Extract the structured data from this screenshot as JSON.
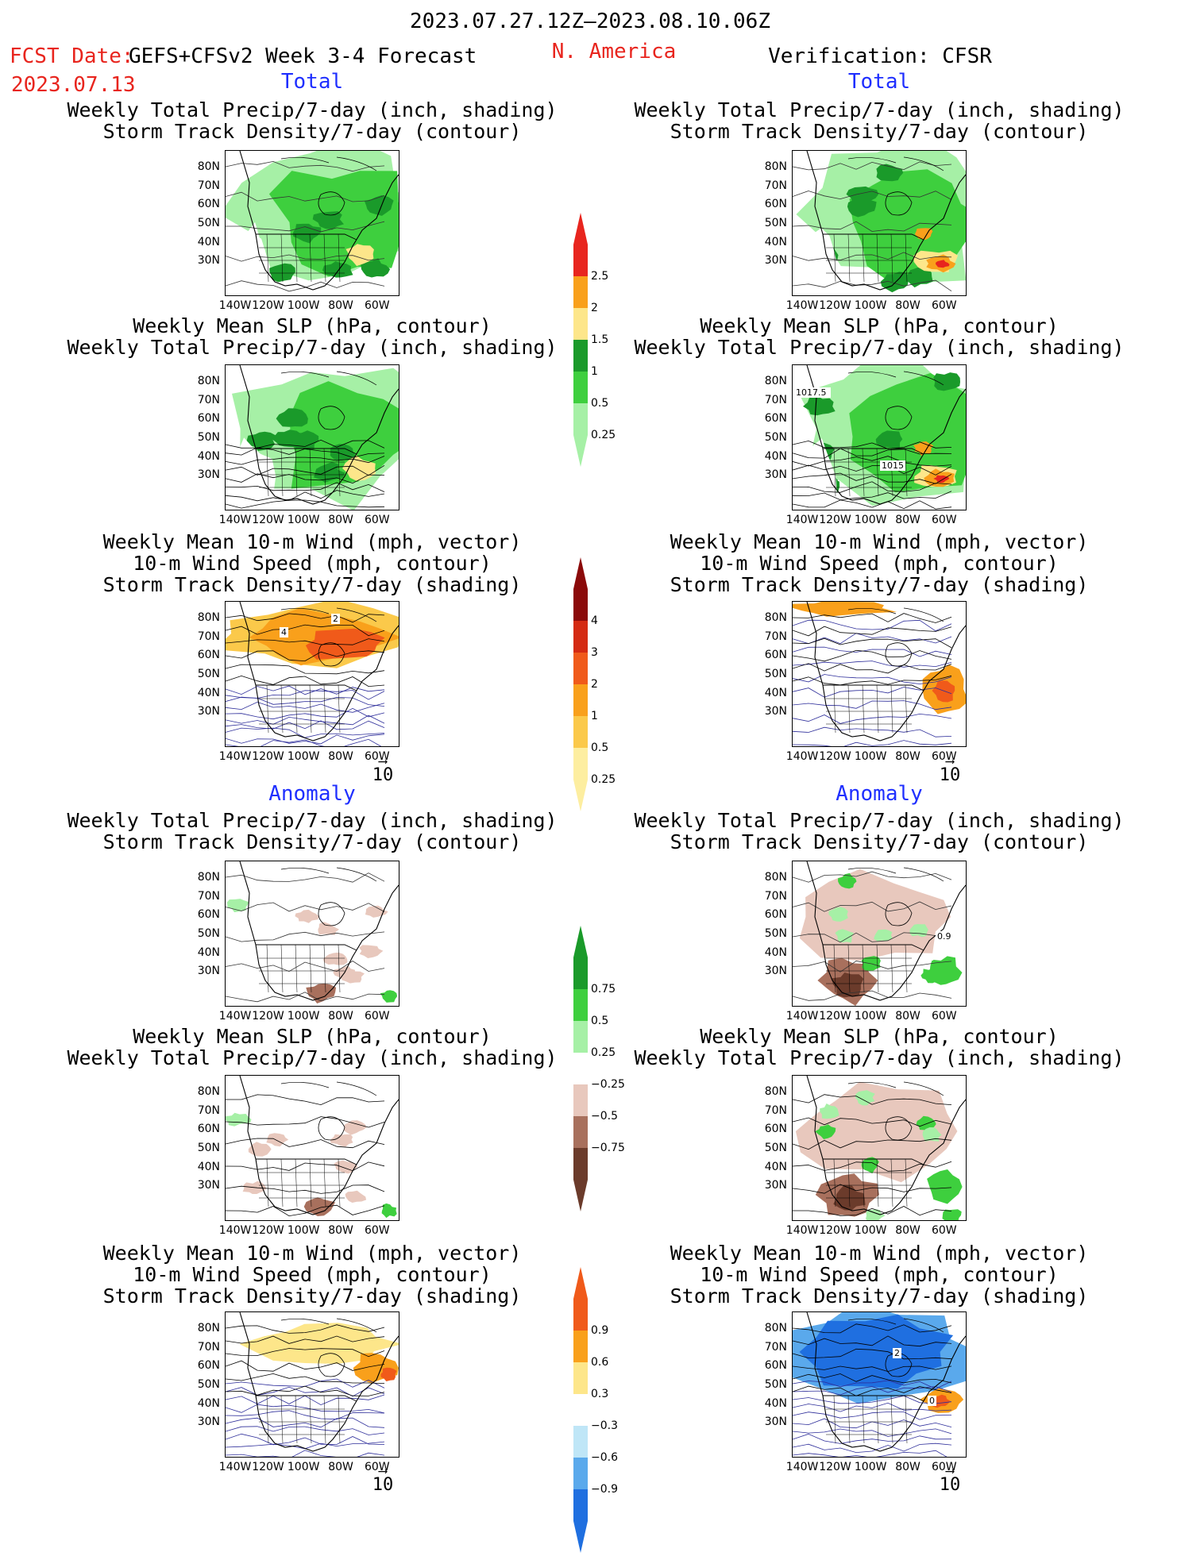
{
  "header": {
    "date_range": "2023.07.27.12Z–2023.08.10.06Z",
    "fcst_label": "FCST Date:",
    "fcst_model": "GEFS+CFSv2 Week 3-4 Forecast",
    "fcst_date": "2023.07.13",
    "region": "N. America",
    "verification": "Verification: CFSR"
  },
  "sections": {
    "total": "Total",
    "anomaly": "Anomaly"
  },
  "panel_titles": {
    "precip_storm": [
      "Weekly Total Precip/7-day (inch, shading)",
      "Storm Track Density/7-day (contour)"
    ],
    "slp_precip": [
      "Weekly Mean SLP (hPa, contour)",
      "Weekly Total Precip/7-day (inch, shading)"
    ],
    "wind_storm": [
      "Weekly Mean 10-m Wind (mph, vector)",
      "10-m Wind Speed (mph, contour)",
      "Storm Track Density/7-day (shading)"
    ]
  },
  "axes": {
    "lat_ticks": [
      "80N",
      "70N",
      "60N",
      "50N",
      "40N",
      "30N"
    ],
    "lon_ticks": [
      "140W",
      "120W",
      "100W",
      "80W",
      "60W"
    ]
  },
  "vector_ref": "10",
  "map_labels": {
    "r2_1017": "1017.5",
    "r2_1015": "1015",
    "r3_left_a": "2",
    "r3_left_b": "4",
    "r4_right": "0.9",
    "r6_right_a": "2",
    "r6_right_b": "0"
  },
  "colorbars": {
    "total_precip": {
      "labels": [
        "2.5",
        "2",
        "1.5",
        "1",
        "0.5",
        "0.25"
      ],
      "colors": [
        "#e8251e",
        "#f9a01b",
        "#fde68a",
        "#1a9a2a",
        "#3ecf3e",
        "#a6f0a6"
      ]
    },
    "total_storm": {
      "labels": [
        "4",
        "3",
        "2",
        "1",
        "0.5",
        "0.25"
      ],
      "colors": [
        "#8b0a0a",
        "#d42a12",
        "#f05a1a",
        "#f9a01b",
        "#fbc94a",
        "#fdeea0"
      ]
    },
    "anom_precip": {
      "labels": [
        "0.75",
        "0.5",
        "0.25",
        "−0.25",
        "−0.5",
        "−0.75"
      ],
      "colors": [
        "#1a9a2a",
        "#3ecf3e",
        "#a6f0a6",
        "#ffffff",
        "#e8c8bd",
        "#a8705d",
        "#6b3b2b"
      ]
    },
    "anom_storm": {
      "labels": [
        "0.9",
        "0.6",
        "0.3",
        "−0.3",
        "−0.6",
        "−0.9"
      ],
      "colors": [
        "#f05a1a",
        "#f9a01b",
        "#fde68a",
        "#ffffff",
        "#bfe6f7",
        "#5aa9ec",
        "#1f6fe0"
      ]
    }
  },
  "chart_data": [
    {
      "type": "heatmap",
      "panel": "forecast-total-precip-storm",
      "field": "Weekly Total Precip/7-day (inch)",
      "lon_range": [
        -140,
        -50
      ],
      "lat_range": [
        25,
        85
      ]
    },
    {
      "type": "heatmap",
      "panel": "verification-total-precip-storm",
      "field": "Weekly Total Precip/7-day (inch)",
      "lon_range": [
        -140,
        -50
      ],
      "lat_range": [
        25,
        85
      ]
    },
    {
      "type": "heatmap",
      "panel": "forecast-total-slp-precip",
      "field": "Weekly Total Precip/7-day (inch)",
      "lon_range": [
        -140,
        -50
      ],
      "lat_range": [
        25,
        85
      ]
    },
    {
      "type": "heatmap",
      "panel": "verification-total-slp-precip",
      "field": "Weekly Total Precip/7-day (inch)",
      "lon_range": [
        -140,
        -50
      ],
      "lat_range": [
        25,
        85
      ]
    },
    {
      "type": "heatmap",
      "panel": "forecast-total-wind-storm",
      "field": "Storm Track Density/7-day",
      "lon_range": [
        -140,
        -50
      ],
      "lat_range": [
        25,
        85
      ]
    },
    {
      "type": "heatmap",
      "panel": "verification-total-wind-storm",
      "field": "Storm Track Density/7-day",
      "lon_range": [
        -140,
        -50
      ],
      "lat_range": [
        25,
        85
      ]
    },
    {
      "type": "heatmap",
      "panel": "forecast-anom-precip-storm",
      "field": "Weekly Total Precip/7-day anomaly (inch)",
      "lon_range": [
        -140,
        -50
      ],
      "lat_range": [
        25,
        85
      ]
    },
    {
      "type": "heatmap",
      "panel": "verification-anom-precip-storm",
      "field": "Weekly Total Precip/7-day anomaly (inch)",
      "lon_range": [
        -140,
        -50
      ],
      "lat_range": [
        25,
        85
      ]
    },
    {
      "type": "heatmap",
      "panel": "forecast-anom-slp-precip",
      "field": "Weekly Total Precip/7-day anomaly (inch)",
      "lon_range": [
        -140,
        -50
      ],
      "lat_range": [
        25,
        85
      ]
    },
    {
      "type": "heatmap",
      "panel": "verification-anom-slp-precip",
      "field": "Weekly Total Precip/7-day anomaly (inch)",
      "lon_range": [
        -140,
        -50
      ],
      "lat_range": [
        25,
        85
      ]
    },
    {
      "type": "heatmap",
      "panel": "forecast-anom-wind-storm",
      "field": "Storm Track Density/7-day anomaly",
      "lon_range": [
        -140,
        -50
      ],
      "lat_range": [
        25,
        85
      ]
    },
    {
      "type": "heatmap",
      "panel": "verification-anom-wind-storm",
      "field": "Storm Track Density/7-day anomaly",
      "lon_range": [
        -140,
        -50
      ],
      "lat_range": [
        25,
        85
      ]
    }
  ]
}
